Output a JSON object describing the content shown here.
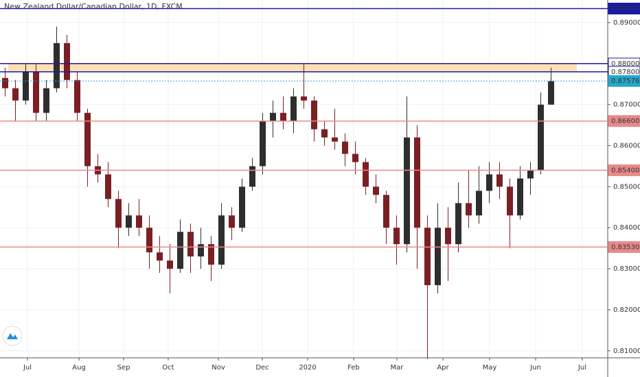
{
  "chart_data": {
    "type": "candlestick",
    "title": "New Zealand Dollar/Canadian Dollar, 1D, FXCM",
    "x": [
      0.5,
      1.5,
      2.5,
      3.5,
      4.5,
      5.5,
      6.5,
      7.5,
      8.5,
      9.5,
      10.5,
      11.5,
      12.5,
      13.5,
      14.5,
      15.5,
      16.5,
      17.5,
      18.5,
      19.5,
      20.5,
      21.5,
      22.5,
      23.5,
      24.5,
      25.5,
      26.5,
      27.5,
      28.5,
      29.5,
      30.5,
      31.5,
      32.5,
      33.5,
      34.5,
      35.5,
      36.5,
      37.5,
      38.5,
      39.5,
      40.5,
      41.5,
      42.5,
      43.5,
      44.5,
      45.5,
      46.5,
      47.5,
      48.5,
      49.5,
      50.5,
      51.5,
      52.5,
      53.5
    ],
    "open": [
      0.8765,
      0.874,
      0.871,
      0.878,
      0.868,
      0.874,
      0.885,
      0.876,
      0.868,
      0.855,
      0.853,
      0.847,
      0.84,
      0.843,
      0.84,
      0.834,
      0.832,
      0.83,
      0.839,
      0.833,
      0.836,
      0.831,
      0.843,
      0.84,
      0.85,
      0.855,
      0.866,
      0.868,
      0.866,
      0.872,
      0.871,
      0.864,
      0.862,
      0.861,
      0.858,
      0.856,
      0.85,
      0.848,
      0.84,
      0.836,
      0.862,
      0.84,
      0.826,
      0.84,
      0.836,
      0.846,
      0.843,
      0.849,
      0.853,
      0.85,
      0.843,
      0.852,
      0.854,
      0.87
    ],
    "high": [
      0.879,
      0.876,
      0.88,
      0.88,
      0.876,
      0.889,
      0.887,
      0.878,
      0.869,
      0.858,
      0.856,
      0.849,
      0.846,
      0.847,
      0.843,
      0.838,
      0.836,
      0.842,
      0.841,
      0.84,
      0.838,
      0.846,
      0.845,
      0.852,
      0.857,
      0.868,
      0.871,
      0.872,
      0.874,
      0.88,
      0.872,
      0.866,
      0.869,
      0.863,
      0.861,
      0.857,
      0.853,
      0.849,
      0.843,
      0.872,
      0.865,
      0.843,
      0.846,
      0.845,
      0.851,
      0.854,
      0.855,
      0.856,
      0.856,
      0.852,
      0.855,
      0.856,
      0.873,
      0.879
    ],
    "low": [
      0.872,
      0.866,
      0.87,
      0.866,
      0.866,
      0.873,
      0.874,
      0.866,
      0.85,
      0.851,
      0.845,
      0.835,
      0.838,
      0.838,
      0.83,
      0.829,
      0.824,
      0.829,
      0.829,
      0.83,
      0.827,
      0.83,
      0.837,
      0.839,
      0.849,
      0.853,
      0.862,
      0.864,
      0.863,
      0.869,
      0.861,
      0.86,
      0.859,
      0.855,
      0.853,
      0.848,
      0.846,
      0.836,
      0.831,
      0.834,
      0.83,
      0.808,
      0.824,
      0.827,
      0.834,
      0.84,
      0.841,
      0.846,
      0.847,
      0.835,
      0.842,
      0.848,
      0.853,
      0.87
    ],
    "close": [
      0.874,
      0.871,
      0.878,
      0.868,
      0.874,
      0.885,
      0.876,
      0.868,
      0.855,
      0.853,
      0.847,
      0.84,
      0.843,
      0.84,
      0.834,
      0.832,
      0.83,
      0.839,
      0.833,
      0.836,
      0.831,
      0.843,
      0.84,
      0.85,
      0.855,
      0.866,
      0.868,
      0.866,
      0.872,
      0.871,
      0.864,
      0.862,
      0.861,
      0.858,
      0.856,
      0.85,
      0.848,
      0.84,
      0.836,
      0.862,
      0.84,
      0.826,
      0.84,
      0.836,
      0.846,
      0.843,
      0.849,
      0.853,
      0.85,
      0.843,
      0.852,
      0.854,
      0.87,
      0.8757
    ],
    "up_color": "#2e2e2e",
    "down_color": "#7a1f24",
    "xlim": [
      0,
      59
    ],
    "xticks": [
      {
        "value": 2.67,
        "label": "Jul"
      },
      {
        "value": 7.67,
        "label": "Aug"
      },
      {
        "value": 12,
        "label": "Sep"
      },
      {
        "value": 16.33,
        "label": "Oct"
      },
      {
        "value": 21.2,
        "label": "Nov"
      },
      {
        "value": 25.47,
        "label": "Dec"
      },
      {
        "value": 29.87,
        "label": "2020"
      },
      {
        "value": 34.33,
        "label": "Feb"
      },
      {
        "value": 38.53,
        "label": "Mar"
      },
      {
        "value": 43,
        "label": "Apr"
      },
      {
        "value": 47.53,
        "label": "May"
      },
      {
        "value": 52,
        "label": "Jun"
      },
      {
        "value": 56.53,
        "label": "Jul"
      }
    ],
    "ylim": [
      0.8083,
      0.8955
    ],
    "yticks": [
      {
        "value": 0.89,
        "label": "0.89000"
      },
      {
        "value": 0.87,
        "label": "0.87000"
      },
      {
        "value": 0.86,
        "label": "0.86000"
      },
      {
        "value": 0.85,
        "label": "0.85000"
      },
      {
        "value": 0.84,
        "label": "0.84000"
      },
      {
        "value": 0.83,
        "label": "0.83000"
      },
      {
        "value": 0.82,
        "label": "0.82000"
      },
      {
        "value": 0.81,
        "label": "0.81000"
      }
    ],
    "grid": true,
    "zone": {
      "from": 0.878,
      "to": 0.88,
      "xlim": [
        0.8,
        56
      ],
      "color": "#ffe0b2"
    },
    "levels": [
      {
        "value": 0.89341,
        "color": "#1a1aa6",
        "style": "solid"
      },
      {
        "value": 0.88,
        "label": "0.88000",
        "color": "#1a1aa6",
        "style": "solid"
      },
      {
        "value": 0.878,
        "label": "0.87800",
        "color": "#1a1aa6",
        "style": "solid"
      },
      {
        "value": 0.87576,
        "color": "#26a6c8",
        "style": "dotted"
      },
      {
        "value": 0.866,
        "label": "0.86600",
        "color": "#e88a8a",
        "style": "solid"
      },
      {
        "value": 0.854,
        "label": "0.85400",
        "color": "#e88a8a",
        "style": "solid"
      },
      {
        "value": 0.8353,
        "label": "0.83530",
        "color": "#e88a8a",
        "style": "solid"
      }
    ]
  }
}
